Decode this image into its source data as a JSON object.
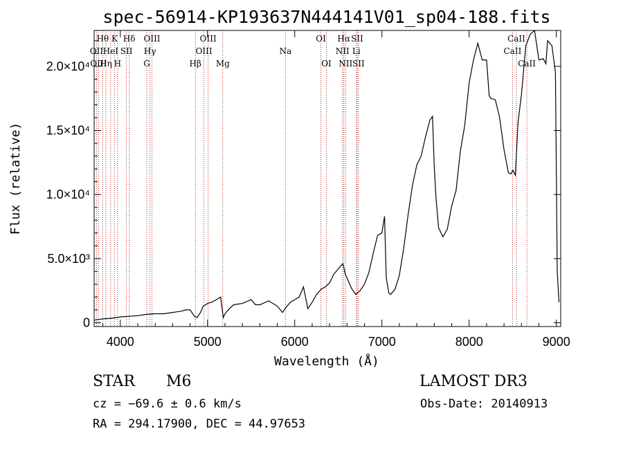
{
  "chart_data": {
    "type": "line",
    "title": "spec-56914-KP193637N444141V01_sp04-188.fits",
    "xlabel": "Wavelength (Å)",
    "ylabel": "Flux (relative)",
    "xlim": [
      3700,
      9050
    ],
    "ylim": [
      -300,
      22800
    ],
    "x_ticks": [
      4000,
      5000,
      6000,
      7000,
      8000,
      9000
    ],
    "x_tick_labels": [
      "4000",
      "5000",
      "6000",
      "7000",
      "8000",
      "9000"
    ],
    "y_ticks": [
      0,
      5000,
      10000,
      15000,
      20000
    ],
    "y_tick_labels": [
      "0",
      "5.0×10³",
      "1.0×10⁴",
      "1.5×10⁴",
      "2.0×10⁴"
    ],
    "series": [
      {
        "name": "spectrum",
        "x": [
          3700,
          3800,
          3900,
          4000,
          4100,
          4200,
          4300,
          4400,
          4500,
          4600,
          4700,
          4750,
          4800,
          4850,
          4880,
          4920,
          4950,
          4980,
          5000,
          5050,
          5100,
          5150,
          5180,
          5200,
          5250,
          5300,
          5400,
          5500,
          5550,
          5600,
          5700,
          5800,
          5860,
          5900,
          5950,
          6000,
          6050,
          6100,
          6150,
          6170,
          6200,
          6250,
          6300,
          6350,
          6400,
          6450,
          6500,
          6550,
          6560,
          6580,
          6600,
          6650,
          6700,
          6750,
          6800,
          6850,
          6900,
          6950,
          7000,
          7030,
          7050,
          7080,
          7100,
          7150,
          7200,
          7250,
          7300,
          7350,
          7400,
          7450,
          7500,
          7550,
          7580,
          7600,
          7620,
          7650,
          7700,
          7750,
          7800,
          7850,
          7900,
          7950,
          8000,
          8050,
          8100,
          8150,
          8200,
          8230,
          8250,
          8300,
          8350,
          8400,
          8450,
          8480,
          8500,
          8530,
          8560,
          8600,
          8650,
          8700,
          8750,
          8800,
          8850,
          8880,
          8900,
          8950,
          8990,
          9010,
          9030
        ],
        "y": [
          200,
          300,
          350,
          450,
          500,
          550,
          650,
          700,
          700,
          800,
          900,
          1000,
          1000,
          500,
          400,
          800,
          1300,
          1400,
          1500,
          1600,
          1800,
          2000,
          400,
          700,
          1100,
          1400,
          1500,
          1800,
          1400,
          1400,
          1700,
          1300,
          800,
          1200,
          1600,
          1800,
          2000,
          2800,
          1100,
          1300,
          1600,
          2200,
          2600,
          2800,
          3100,
          3800,
          4200,
          4600,
          4400,
          3800,
          3500,
          2700,
          2200,
          2500,
          3000,
          3900,
          5400,
          6800,
          7000,
          8300,
          3500,
          2300,
          2200,
          2600,
          3700,
          5800,
          8400,
          10700,
          12300,
          13000,
          14500,
          15800,
          16100,
          12200,
          9800,
          7400,
          6700,
          7300,
          9100,
          10300,
          13400,
          15400,
          18700,
          20500,
          21800,
          20500,
          20500,
          17700,
          17500,
          17400,
          16000,
          13500,
          11700,
          11600,
          11900,
          11500,
          15600,
          17800,
          21600,
          22500,
          22800,
          20500,
          20600,
          20200,
          22000,
          21600,
          19500,
          4000,
          1600
        ]
      }
    ],
    "spectral_lines": [
      {
        "label": "Hθ",
        "wavelength": 3798,
        "row": 1
      },
      {
        "label": "OII",
        "wavelength": 3727,
        "row": 2
      },
      {
        "label": "OIII",
        "wavelength": 3750,
        "row": 3
      },
      {
        "label": "K",
        "wavelength": 3934,
        "row": 1
      },
      {
        "label": "HeI",
        "wavelength": 3889,
        "row": 2
      },
      {
        "label": "Hη",
        "wavelength": 3835,
        "row": 3
      },
      {
        "label": "SII",
        "wavelength": 4070,
        "row": 2
      },
      {
        "label": "H",
        "wavelength": 3969,
        "row": 3
      },
      {
        "label": "Hδ",
        "wavelength": 4102,
        "row": 1
      },
      {
        "label": "OIII",
        "wavelength": 4363,
        "row": 1
      },
      {
        "label": "Hγ",
        "wavelength": 4340,
        "row": 2
      },
      {
        "label": "G",
        "wavelength": 4304,
        "row": 3
      },
      {
        "label": "OIII",
        "wavelength": 5007,
        "row": 1
      },
      {
        "label": "OIII",
        "wavelength": 4959,
        "row": 2
      },
      {
        "label": "Hβ",
        "wavelength": 4861,
        "row": 3
      },
      {
        "label": "Mg",
        "wavelength": 5175,
        "row": 3
      },
      {
        "label": "Na",
        "wavelength": 5894,
        "row": 2
      },
      {
        "label": "OI",
        "wavelength": 6300,
        "row": 1
      },
      {
        "label": "OI",
        "wavelength": 6363,
        "row": 3
      },
      {
        "label": "Hα",
        "wavelength": 6563,
        "row": 1
      },
      {
        "label": "SII",
        "wavelength": 6716,
        "row": 1
      },
      {
        "label": "NII",
        "wavelength": 6548,
        "row": 2
      },
      {
        "label": "Li",
        "wavelength": 6707,
        "row": 2
      },
      {
        "label": "NII",
        "wavelength": 6583,
        "row": 3
      },
      {
        "label": "SII",
        "wavelength": 6731,
        "row": 3
      },
      {
        "label": "CaII",
        "wavelength": 8542,
        "row": 1
      },
      {
        "label": "CaII",
        "wavelength": 8498,
        "row": 2
      },
      {
        "label": "CaII",
        "wavelength": 8662,
        "row": 3
      }
    ]
  },
  "info": {
    "object_class": "STAR",
    "subclass": "M6",
    "survey": "LAMOST DR3",
    "redshift_line": "cz = −69.6 ± 0.6 km/s",
    "obs_date": "Obs-Date: 20140913",
    "coords": "RA = 294.17900, DEC =  44.97653"
  },
  "colors": {
    "axis": "#000000",
    "line": "#000000",
    "marker": "#b22222",
    "background": "#ffffff"
  }
}
